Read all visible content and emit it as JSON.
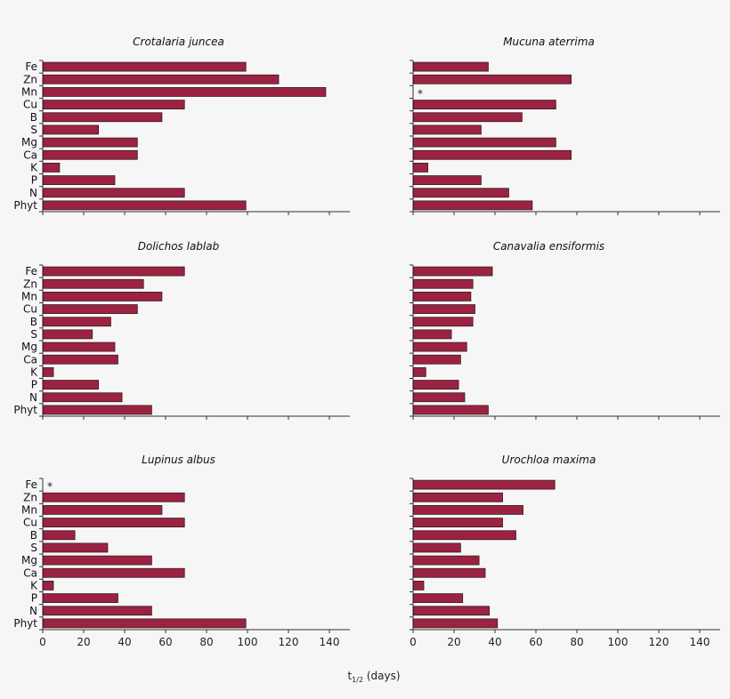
{
  "chart_data": {
    "type": "bar",
    "orientation": "horizontal",
    "bar_color": "#9b2341",
    "bar_edge_color": "#3a1a22",
    "categories": [
      "Fe",
      "Zn",
      "Mn",
      "Cu",
      "B",
      "S",
      "Mg",
      "Ca",
      "K",
      "P",
      "N",
      "Phyt"
    ],
    "xlim": [
      0,
      150
    ],
    "xticks": [
      0,
      20,
      40,
      60,
      80,
      100,
      120,
      140
    ],
    "xlabel": "t",
    "xlabel_sub": "1/2",
    "xlabel_unit": " (days)",
    "missing_marker": "*",
    "grid": false,
    "panels": [
      {
        "title": "Crotalaria juncea",
        "values": [
          99,
          115,
          138,
          69,
          58,
          27,
          46,
          46,
          8,
          35,
          69,
          99
        ]
      },
      {
        "title": "Mucuna aterrima",
        "values": [
          36.5,
          77,
          null,
          69.5,
          53,
          33,
          69.5,
          77,
          7,
          33,
          46.5,
          58
        ]
      },
      {
        "title": "Dolichos lablab",
        "values": [
          69,
          49,
          58,
          46,
          33,
          24,
          35,
          36.5,
          5,
          27,
          38.5,
          53
        ]
      },
      {
        "title": "Canavalia ensiformis",
        "values": [
          38.5,
          29,
          28,
          30,
          29,
          18.5,
          26,
          23,
          6,
          22,
          25,
          36.5
        ]
      },
      {
        "title": "Lupinus albus",
        "values": [
          null,
          69,
          58,
          69,
          15.5,
          31.5,
          53,
          69,
          5,
          36.5,
          53,
          99
        ]
      },
      {
        "title": "Urochloa maxima",
        "values": [
          69,
          43.5,
          53.5,
          43.5,
          50,
          23,
          32,
          35,
          5,
          24,
          37,
          41
        ]
      }
    ]
  }
}
